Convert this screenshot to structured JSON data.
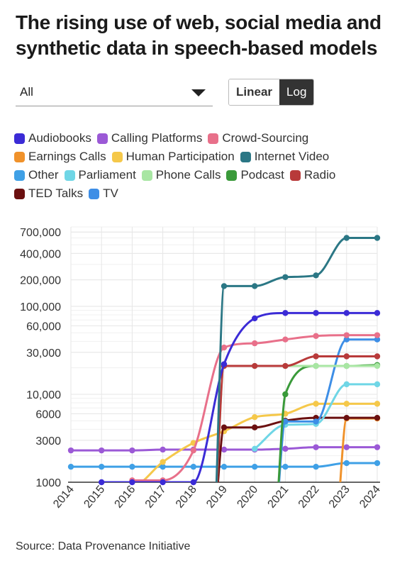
{
  "header": {
    "title": "The rising use of web, social media and synthetic data in speech-based models"
  },
  "controls": {
    "dropdown_value": "All",
    "scale_options": [
      "Linear",
      "Log"
    ],
    "active_scale": "Log"
  },
  "source": "Source: Data Provenance Initiative",
  "colors": {
    "grid": "#e6e6e6",
    "axis": "#333333",
    "text": "#333333"
  },
  "chart_data": {
    "type": "line",
    "title": "The rising use of web, social media and synthetic data in speech-based models",
    "xlabel": "",
    "ylabel": "",
    "yscale": "log",
    "xlim": [
      2014,
      2024
    ],
    "ylim": [
      1000,
      800000
    ],
    "x": [
      2014,
      2015,
      2016,
      2017,
      2018,
      2019,
      2020,
      2021,
      2022,
      2023,
      2024
    ],
    "x_ticks": [
      2014,
      2015,
      2016,
      2017,
      2018,
      2019,
      2020,
      2021,
      2022,
      2023,
      2024
    ],
    "y_ticks": [
      1000,
      3000,
      6000,
      10000,
      30000,
      60000,
      100000,
      200000,
      400000,
      700000
    ],
    "y_tick_labels": [
      "1000",
      "3000",
      "6000",
      "10,000",
      "30,000",
      "60,000",
      "100,000",
      "200,000",
      "400,000",
      "700,000"
    ],
    "grid": true,
    "legend_position": "top",
    "series": [
      {
        "name": "Audiobooks",
        "color": "#3b2bd6",
        "values": [
          null,
          1000,
          1000,
          1000,
          1000,
          22000,
          73000,
          84000,
          84000,
          84000,
          84000
        ]
      },
      {
        "name": "Calling Platforms",
        "color": "#9b59d6",
        "values": [
          2300,
          2300,
          2300,
          2350,
          2350,
          2350,
          2350,
          2400,
          2500,
          2500,
          2500
        ]
      },
      {
        "name": "Crowd-Sourcing",
        "color": "#e8708a",
        "values": [
          null,
          null,
          1050,
          1050,
          2300,
          34000,
          38000,
          42000,
          46000,
          47000,
          47000
        ]
      },
      {
        "name": "Earnings Calls",
        "color": "#f0922b",
        "values": [
          null,
          null,
          null,
          null,
          null,
          null,
          null,
          null,
          null,
          5300,
          5300
        ]
      },
      {
        "name": "Human Participation",
        "color": "#f5c84a",
        "values": [
          null,
          900,
          900,
          1700,
          2800,
          3800,
          5500,
          6000,
          7800,
          7800,
          7800
        ]
      },
      {
        "name": "Internet Video",
        "color": "#2b7785",
        "values": [
          null,
          null,
          null,
          null,
          null,
          170000,
          170000,
          215000,
          225000,
          600000,
          600000
        ]
      },
      {
        "name": "Other",
        "color": "#3fa0e6",
        "values": [
          1500,
          1500,
          1500,
          1500,
          1500,
          1500,
          1500,
          1500,
          1500,
          1650,
          1650
        ]
      },
      {
        "name": "Parliament",
        "color": "#6fd6e6",
        "values": [
          null,
          null,
          null,
          null,
          null,
          null,
          2400,
          4500,
          4600,
          13000,
          13000
        ]
      },
      {
        "name": "Phone Calls",
        "color": "#a8e6a3",
        "values": [
          null,
          null,
          null,
          null,
          null,
          21000,
          21000,
          21000,
          21000,
          21000,
          21000
        ]
      },
      {
        "name": "Podcast",
        "color": "#3a9a3a",
        "values": [
          null,
          null,
          null,
          null,
          null,
          null,
          null,
          10000,
          21000,
          21000,
          21500
        ]
      },
      {
        "name": "Radio",
        "color": "#b83a3a",
        "values": [
          null,
          null,
          null,
          null,
          null,
          21000,
          21000,
          21000,
          27000,
          27000,
          27000
        ]
      },
      {
        "name": "TED Talks",
        "color": "#6b1010",
        "values": [
          null,
          null,
          null,
          null,
          null,
          4200,
          4200,
          5000,
          5400,
          5400,
          5400
        ]
      },
      {
        "name": "TV",
        "color": "#3d8ee6",
        "values": [
          null,
          null,
          null,
          null,
          null,
          null,
          null,
          4900,
          4900,
          42000,
          42000
        ]
      }
    ]
  }
}
